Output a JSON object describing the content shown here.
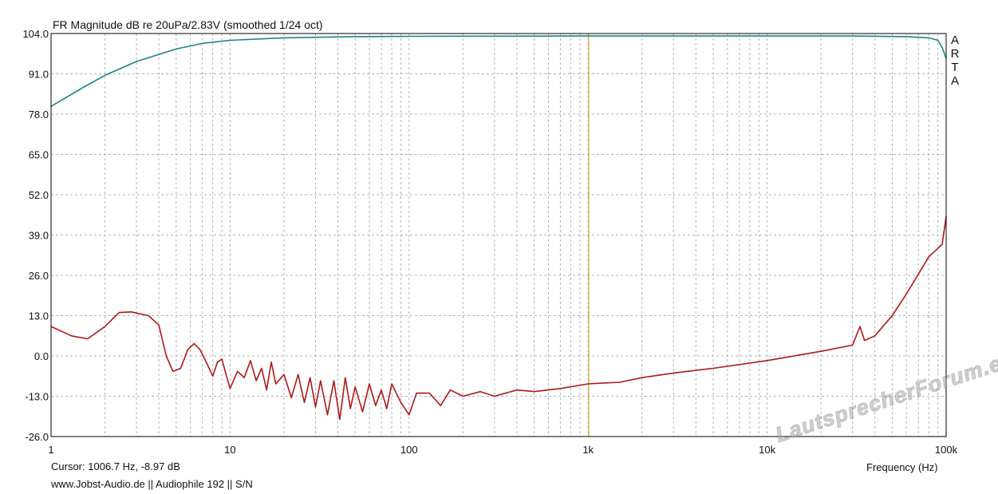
{
  "chart_data": {
    "type": "line",
    "title": "FR Magnitude dB re 20uPa/2.83V (smoothed 1/24 oct)",
    "xlabel": "Frequency (Hz)",
    "ylabel": "",
    "x_scale": "log",
    "xlim": [
      1,
      100000
    ],
    "ylim": [
      -26,
      104
    ],
    "y_ticks": [
      "104.0",
      "91.0",
      "78.0",
      "65.0",
      "52.0",
      "39.0",
      "26.0",
      "13.0",
      "0.0",
      "-13.0",
      "-26.0"
    ],
    "x_ticks": [
      "1",
      "10",
      "100",
      "1k",
      "10k",
      "100k"
    ],
    "grid": true,
    "cursor_x": 1006.7,
    "series": [
      {
        "color": "#1a8585",
        "points": [
          [
            1,
            80.5
          ],
          [
            1.5,
            86.5
          ],
          [
            2,
            90.5
          ],
          [
            3,
            95.0
          ],
          [
            5,
            99.0
          ],
          [
            7,
            100.8
          ],
          [
            10,
            101.8
          ],
          [
            20,
            102.6
          ],
          [
            50,
            103.0
          ],
          [
            100,
            103.1
          ],
          [
            1000,
            103.2
          ],
          [
            10000,
            103.2
          ],
          [
            30000,
            103.2
          ],
          [
            60000,
            103.0
          ],
          [
            80000,
            102.6
          ],
          [
            90000,
            101.8
          ],
          [
            95000,
            99.5
          ],
          [
            100000,
            96.0
          ]
        ]
      },
      {
        "color": "#b01818",
        "points": [
          [
            1,
            9.5
          ],
          [
            1.3,
            6.5
          ],
          [
            1.6,
            5.5
          ],
          [
            2,
            9.5
          ],
          [
            2.4,
            14.0
          ],
          [
            2.8,
            14.2
          ],
          [
            3.5,
            13.0
          ],
          [
            4.0,
            10.0
          ],
          [
            4.4,
            0.0
          ],
          [
            4.8,
            -5.0
          ],
          [
            5.3,
            -4.0
          ],
          [
            5.8,
            2.0
          ],
          [
            6.3,
            4.0
          ],
          [
            6.8,
            2.0
          ],
          [
            7.5,
            -3.0
          ],
          [
            8.0,
            -6.5
          ],
          [
            8.5,
            -2.0
          ],
          [
            9.0,
            -1.0
          ],
          [
            9.5,
            -6.0
          ],
          [
            10,
            -10.5
          ],
          [
            11,
            -5.0
          ],
          [
            12,
            -7.0
          ],
          [
            13,
            -1.5
          ],
          [
            14,
            -8.0
          ],
          [
            15,
            -4.0
          ],
          [
            16,
            -11.0
          ],
          [
            17,
            -2.0
          ],
          [
            18,
            -9.0
          ],
          [
            20,
            -6.0
          ],
          [
            22,
            -13.5
          ],
          [
            24,
            -6.0
          ],
          [
            26,
            -15.0
          ],
          [
            28,
            -7.0
          ],
          [
            30,
            -16.5
          ],
          [
            32,
            -8.0
          ],
          [
            35,
            -19.0
          ],
          [
            38,
            -8.0
          ],
          [
            41,
            -20.5
          ],
          [
            44,
            -7.0
          ],
          [
            47,
            -17.0
          ],
          [
            50,
            -10.0
          ],
          [
            55,
            -18.0
          ],
          [
            60,
            -9.0
          ],
          [
            65,
            -16.0
          ],
          [
            70,
            -11.0
          ],
          [
            75,
            -17.0
          ],
          [
            80,
            -9.0
          ],
          [
            90,
            -15.0
          ],
          [
            100,
            -19.0
          ],
          [
            110,
            -12.0
          ],
          [
            130,
            -12.0
          ],
          [
            150,
            -16.0
          ],
          [
            170,
            -11.0
          ],
          [
            200,
            -13.0
          ],
          [
            250,
            -11.5
          ],
          [
            300,
            -13.0
          ],
          [
            400,
            -11.0
          ],
          [
            500,
            -11.5
          ],
          [
            700,
            -10.5
          ],
          [
            1000,
            -9.0
          ],
          [
            1500,
            -8.5
          ],
          [
            2000,
            -7.0
          ],
          [
            3000,
            -5.5
          ],
          [
            5000,
            -4.0
          ],
          [
            10000,
            -1.5
          ],
          [
            20000,
            1.5
          ],
          [
            30000,
            3.5
          ],
          [
            33000,
            9.5
          ],
          [
            35000,
            5.0
          ],
          [
            40000,
            6.5
          ],
          [
            50000,
            13.0
          ],
          [
            60000,
            20.0
          ],
          [
            80000,
            32.0
          ],
          [
            95000,
            36.0
          ],
          [
            100000,
            45.0
          ]
        ]
      }
    ]
  },
  "side_label": [
    "A",
    "R",
    "T",
    "A"
  ],
  "cursor_readout": "Cursor: 1006.7 Hz, -8.97 dB",
  "footer_info": "www.Jobst-Audio.de  ||  Audiophile 192  || S/N",
  "watermark": "LautsprecherForum.eu",
  "colors": {
    "grid": "#b4b4b4",
    "cursor": "#d4a020"
  }
}
